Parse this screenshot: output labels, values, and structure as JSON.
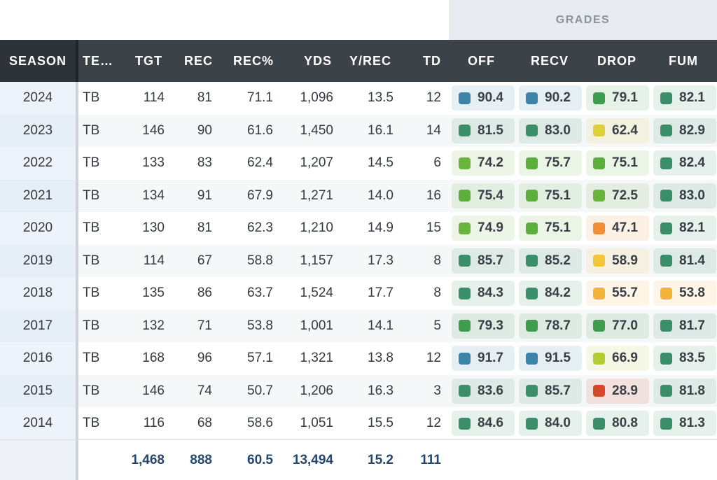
{
  "grades_label": "GRADES",
  "columns": {
    "season": "SEASON",
    "team": "TE…",
    "tgt": "TGT",
    "rec": "REC",
    "rec_pct": "REC%",
    "yds": "YDS",
    "y_rec": "Y/REC",
    "td": "TD",
    "off": "OFF",
    "recv": "RECV",
    "drop": "DROP",
    "fum": "FUM"
  },
  "rows": [
    {
      "season": "2024",
      "team": "TB",
      "tgt": "114",
      "rec": "81",
      "rec_pct": "71.1",
      "yds": "1,096",
      "y_rec": "13.5",
      "td": "12",
      "grades": [
        {
          "value": "90.4",
          "color": "#3b83a8"
        },
        {
          "value": "90.2",
          "color": "#3b83a8"
        },
        {
          "value": "79.1",
          "color": "#3f9c4f"
        },
        {
          "value": "82.1",
          "color": "#3a8f6a"
        }
      ]
    },
    {
      "season": "2023",
      "team": "TB",
      "tgt": "146",
      "rec": "90",
      "rec_pct": "61.6",
      "yds": "1,450",
      "y_rec": "16.1",
      "td": "14",
      "grades": [
        {
          "value": "81.5",
          "color": "#3a8f6a"
        },
        {
          "value": "83.0",
          "color": "#3a8f6a"
        },
        {
          "value": "62.4",
          "color": "#ddd03a"
        },
        {
          "value": "82.9",
          "color": "#3a8f6a"
        }
      ]
    },
    {
      "season": "2022",
      "team": "TB",
      "tgt": "133",
      "rec": "83",
      "rec_pct": "62.4",
      "yds": "1,207",
      "y_rec": "14.5",
      "td": "6",
      "grades": [
        {
          "value": "74.2",
          "color": "#6ab33c"
        },
        {
          "value": "75.7",
          "color": "#5eae3d"
        },
        {
          "value": "75.1",
          "color": "#5eae3d"
        },
        {
          "value": "82.4",
          "color": "#3a8f6a"
        }
      ]
    },
    {
      "season": "2021",
      "team": "TB",
      "tgt": "134",
      "rec": "91",
      "rec_pct": "67.9",
      "yds": "1,271",
      "y_rec": "14.0",
      "td": "16",
      "grades": [
        {
          "value": "75.4",
          "color": "#5eae3d"
        },
        {
          "value": "75.1",
          "color": "#5eae3d"
        },
        {
          "value": "72.5",
          "color": "#6ab33c"
        },
        {
          "value": "83.0",
          "color": "#3a8f6a"
        }
      ]
    },
    {
      "season": "2020",
      "team": "TB",
      "tgt": "130",
      "rec": "81",
      "rec_pct": "62.3",
      "yds": "1,210",
      "y_rec": "14.9",
      "td": "15",
      "grades": [
        {
          "value": "74.9",
          "color": "#6ab33c"
        },
        {
          "value": "75.1",
          "color": "#5eae3d"
        },
        {
          "value": "47.1",
          "color": "#f08f34"
        },
        {
          "value": "82.1",
          "color": "#3a8f6a"
        }
      ]
    },
    {
      "season": "2019",
      "team": "TB",
      "tgt": "114",
      "rec": "67",
      "rec_pct": "58.8",
      "yds": "1,157",
      "y_rec": "17.3",
      "td": "8",
      "grades": [
        {
          "value": "85.7",
          "color": "#3a8f6a"
        },
        {
          "value": "85.2",
          "color": "#3a8f6a"
        },
        {
          "value": "58.9",
          "color": "#f2c53a"
        },
        {
          "value": "81.4",
          "color": "#3a8f6a"
        }
      ]
    },
    {
      "season": "2018",
      "team": "TB",
      "tgt": "135",
      "rec": "86",
      "rec_pct": "63.7",
      "yds": "1,524",
      "y_rec": "17.7",
      "td": "8",
      "grades": [
        {
          "value": "84.3",
          "color": "#3a8f6a"
        },
        {
          "value": "84.2",
          "color": "#3a8f6a"
        },
        {
          "value": "55.7",
          "color": "#f4b43c"
        },
        {
          "value": "53.8",
          "color": "#f4b43c"
        }
      ]
    },
    {
      "season": "2017",
      "team": "TB",
      "tgt": "132",
      "rec": "71",
      "rec_pct": "53.8",
      "yds": "1,001",
      "y_rec": "14.1",
      "td": "5",
      "grades": [
        {
          "value": "79.3",
          "color": "#3f9c4f"
        },
        {
          "value": "78.7",
          "color": "#3f9c4f"
        },
        {
          "value": "77.0",
          "color": "#3f9c4f"
        },
        {
          "value": "81.7",
          "color": "#3a8f6a"
        }
      ]
    },
    {
      "season": "2016",
      "team": "TB",
      "tgt": "168",
      "rec": "96",
      "rec_pct": "57.1",
      "yds": "1,321",
      "y_rec": "13.8",
      "td": "12",
      "grades": [
        {
          "value": "91.7",
          "color": "#3b83a8"
        },
        {
          "value": "91.5",
          "color": "#3b83a8"
        },
        {
          "value": "66.9",
          "color": "#b5cc35"
        },
        {
          "value": "83.5",
          "color": "#3a8f6a"
        }
      ]
    },
    {
      "season": "2015",
      "team": "TB",
      "tgt": "146",
      "rec": "74",
      "rec_pct": "50.7",
      "yds": "1,206",
      "y_rec": "16.3",
      "td": "3",
      "grades": [
        {
          "value": "83.6",
          "color": "#3a8f6a"
        },
        {
          "value": "85.7",
          "color": "#3a8f6a"
        },
        {
          "value": "28.9",
          "color": "#d6462a"
        },
        {
          "value": "81.8",
          "color": "#3a8f6a"
        }
      ]
    },
    {
      "season": "2014",
      "team": "TB",
      "tgt": "116",
      "rec": "68",
      "rec_pct": "58.6",
      "yds": "1,051",
      "y_rec": "15.5",
      "td": "12",
      "grades": [
        {
          "value": "84.6",
          "color": "#3a8f6a"
        },
        {
          "value": "84.0",
          "color": "#3a8f6a"
        },
        {
          "value": "80.8",
          "color": "#3a8f6a"
        },
        {
          "value": "81.3",
          "color": "#3a8f6a"
        }
      ]
    }
  ],
  "totals": {
    "tgt": "1,468",
    "rec": "888",
    "rec_pct": "60.5",
    "yds": "13,494",
    "y_rec": "15.2",
    "td": "111"
  }
}
